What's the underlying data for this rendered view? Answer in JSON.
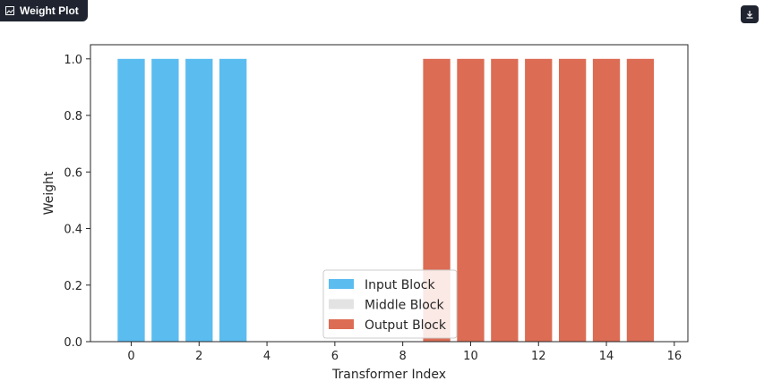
{
  "panel": {
    "title": "Weight Plot",
    "title_icon": "image-icon",
    "download_icon": "download-icon"
  },
  "chart_data": {
    "type": "bar",
    "xlabel": "Transformer Index",
    "ylabel": "Weight",
    "xlim": [
      -1.2,
      16.4
    ],
    "ylim": [
      0,
      1.05
    ],
    "xticks": [
      0,
      2,
      4,
      6,
      8,
      10,
      12,
      14,
      16
    ],
    "yticks": [
      0.0,
      0.2,
      0.4,
      0.6,
      0.8,
      1.0
    ],
    "ytick_labels": [
      "0.0",
      "0.2",
      "0.4",
      "0.6",
      "0.8",
      "1.0"
    ],
    "grid": false,
    "legend_position": "lower-center",
    "series": [
      {
        "name": "Input Block",
        "color": "#5bbcf0",
        "x": [
          0,
          1,
          2,
          3
        ],
        "values": [
          1.0,
          1.0,
          1.0,
          1.0
        ]
      },
      {
        "name": "Middle Block",
        "color": "#e3e3e3",
        "x": [
          4,
          5,
          6,
          7,
          8
        ],
        "values": [
          0,
          0,
          0,
          0,
          0
        ]
      },
      {
        "name": "Output Block",
        "color": "#dc6c54",
        "x": [
          9,
          10,
          11,
          12,
          13,
          14,
          15
        ],
        "values": [
          1.0,
          1.0,
          1.0,
          1.0,
          1.0,
          1.0,
          1.0
        ]
      }
    ]
  }
}
